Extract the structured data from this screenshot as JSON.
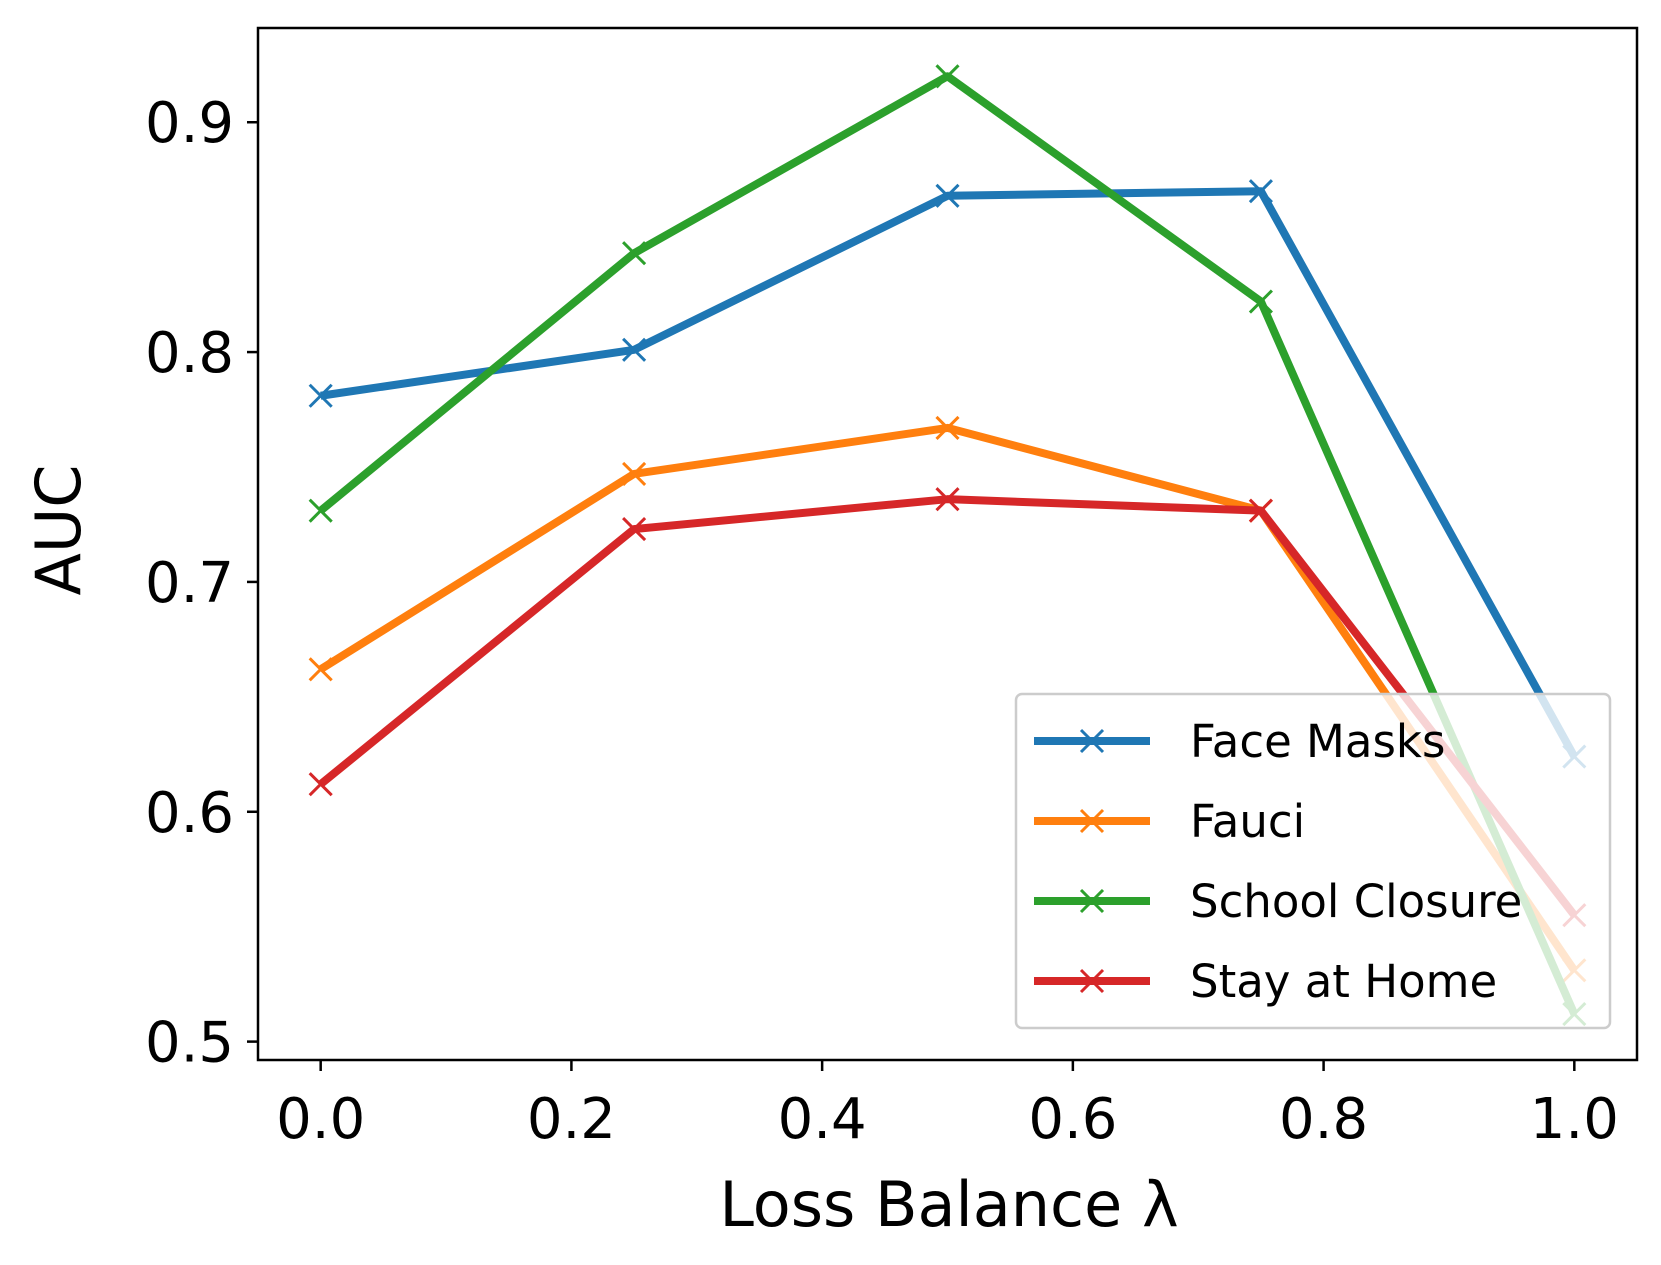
{
  "chart_data": {
    "type": "line",
    "title": "",
    "xlabel": "Loss Balance λ",
    "ylabel": "AUC",
    "xlim": [
      -0.05,
      1.05
    ],
    "ylim": [
      0.492,
      0.941
    ],
    "xticks": [
      0.0,
      0.2,
      0.4,
      0.6,
      0.8,
      1.0
    ],
    "xtick_labels": [
      "0.0",
      "0.2",
      "0.4",
      "0.6",
      "0.8",
      "1.0"
    ],
    "yticks": [
      0.5,
      0.6,
      0.7,
      0.8,
      0.9
    ],
    "ytick_labels": [
      "0.5",
      "0.6",
      "0.7",
      "0.8",
      "0.9"
    ],
    "grid": false,
    "legend_position": "lower-right",
    "x": [
      0.0,
      0.25,
      0.5,
      0.75,
      1.0
    ],
    "series": [
      {
        "name": "Face Masks",
        "color": "#1f77b4",
        "marker": "x",
        "values": [
          0.781,
          0.801,
          0.868,
          0.87,
          0.624
        ]
      },
      {
        "name": "Fauci",
        "color": "#ff7f0e",
        "marker": "x",
        "values": [
          0.662,
          0.747,
          0.767,
          0.731,
          0.531
        ]
      },
      {
        "name": "School Closure",
        "color": "#2ca02c",
        "marker": "x",
        "values": [
          0.731,
          0.843,
          0.92,
          0.822,
          0.512
        ]
      },
      {
        "name": "Stay at Home",
        "color": "#d62728",
        "marker": "x",
        "values": [
          0.612,
          0.723,
          0.736,
          0.731,
          0.555
        ]
      }
    ]
  }
}
